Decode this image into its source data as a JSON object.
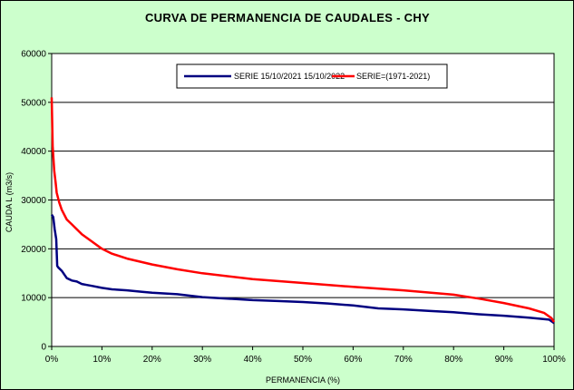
{
  "chart_data": {
    "type": "line",
    "title": "CURVA DE PERMANENCIA DE CAUDALES - CHY",
    "xlabel": "PERMANENCIA (%)",
    "ylabel": "CAUDA L (m3/s)",
    "xlim": [
      0,
      100
    ],
    "ylim": [
      0,
      60000
    ],
    "x_ticks": [
      "0%",
      "10%",
      "20%",
      "30%",
      "40%",
      "50%",
      "60%",
      "70%",
      "80%",
      "90%",
      "100%"
    ],
    "y_ticks": [
      "0",
      "10000",
      "20000",
      "30000",
      "40000",
      "50000",
      "60000"
    ],
    "grid": "horizontal",
    "legend_position": "top",
    "series": [
      {
        "name": "SERIE 15/10/2021 15/10/2022",
        "color": "#000080",
        "x": [
          0,
          0.3,
          0.6,
          0.9,
          1.1,
          1.3,
          2,
          3,
          4,
          5,
          6,
          7,
          8,
          10,
          12,
          15,
          18,
          20,
          25,
          30,
          35,
          40,
          45,
          50,
          55,
          60,
          65,
          70,
          75,
          80,
          85,
          90,
          95,
          99,
          100
        ],
        "y": [
          27000,
          26500,
          24000,
          22000,
          16500,
          16200,
          15500,
          14000,
          13500,
          13300,
          12800,
          12600,
          12400,
          12000,
          11700,
          11500,
          11200,
          11000,
          10700,
          10100,
          9800,
          9500,
          9300,
          9100,
          8800,
          8400,
          7800,
          7600,
          7300,
          7000,
          6600,
          6300,
          5900,
          5500,
          4800
        ]
      },
      {
        "name": "SERIE=(1971-2021)",
        "color": "#ff0000",
        "x": [
          0,
          0.2,
          0.5,
          0.8,
          1,
          1.5,
          2,
          3,
          4,
          5,
          6,
          8,
          10,
          12,
          15,
          20,
          25,
          30,
          40,
          50,
          60,
          70,
          80,
          85,
          90,
          95,
          98,
          99.5,
          100
        ],
        "y": [
          51000,
          41000,
          36000,
          33500,
          31500,
          29500,
          28000,
          26000,
          25000,
          24000,
          23000,
          21500,
          20000,
          19000,
          18000,
          16800,
          15800,
          15000,
          13800,
          13000,
          12200,
          11500,
          10600,
          9800,
          8900,
          7800,
          6900,
          5800,
          5000
        ]
      }
    ]
  }
}
